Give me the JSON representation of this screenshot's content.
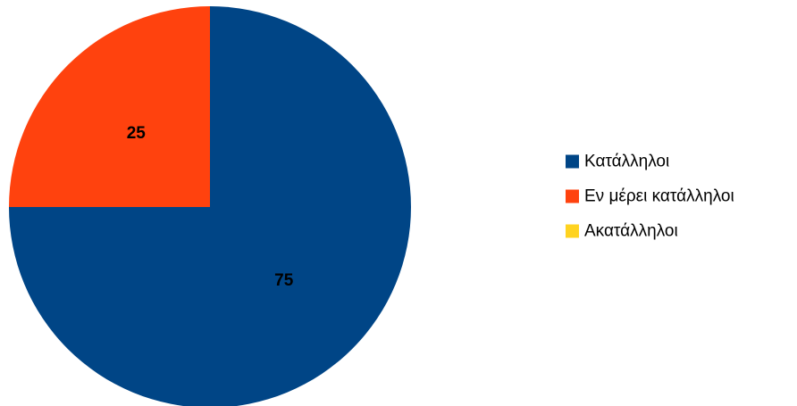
{
  "chart_data": {
    "type": "pie",
    "title": "",
    "slices": [
      {
        "label": "Κατάλληλοι",
        "value": 75,
        "color": "#004586"
      },
      {
        "label": "Εν μέρει κατάλληλοι",
        "value": 25,
        "color": "#ff420e"
      },
      {
        "label": "Ακατάλληλοι",
        "value": 0,
        "color": "#ffd320"
      }
    ],
    "start_angle_deg": 0,
    "direction": "clockwise",
    "data_labels": "value",
    "legend": {
      "position": "right",
      "entries": [
        "Κατάλληλοι",
        "Εν μέρει κατάλληλοι",
        "Ακατάλληλοι"
      ]
    }
  }
}
